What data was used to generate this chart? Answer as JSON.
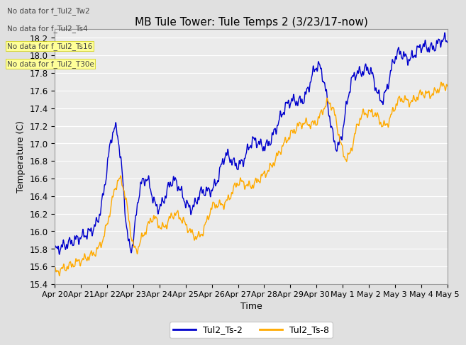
{
  "title": "MB Tule Tower: Tule Temps 2 (3/23/17-now)",
  "xlabel": "Time",
  "ylabel": "Temperature (C)",
  "ylim": [
    15.4,
    18.3
  ],
  "xlim_days": [
    0,
    15
  ],
  "x_tick_labels": [
    "Apr 20",
    "Apr 21",
    "Apr 22",
    "Apr 23",
    "Apr 24",
    "Apr 25",
    "Apr 26",
    "Apr 27",
    "Apr 28",
    "Apr 29",
    "Apr 30",
    "May 1",
    "May 2",
    "May 3",
    "May 4",
    "May 5"
  ],
  "color_blue": "#0000cc",
  "color_orange": "#ffaa00",
  "no_data_text": [
    "No data for f_Tul2_Tw2",
    "No data for f_Tul2_Ts4",
    "No data for f_Tul2_Ts16",
    "No data for f_Tul2_T30e"
  ],
  "no_data_yellow": [
    false,
    false,
    true,
    true
  ],
  "legend_labels": [
    "Tul2_Ts-2",
    "Tul2_Ts-8"
  ],
  "bg_color": "#e0e0e0",
  "plot_bg": "#ebebeb",
  "grid_color": "#ffffff",
  "title_fontsize": 11,
  "axis_fontsize": 9,
  "tick_fontsize": 8.5,
  "legend_fontsize": 9
}
